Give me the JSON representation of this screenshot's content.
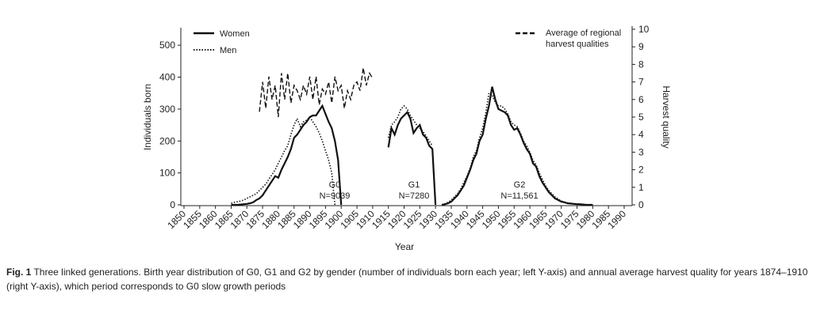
{
  "chart_data": {
    "type": "line",
    "x_label": "Year",
    "y_label": "Individuals born",
    "y2_label": "Harvest quality",
    "xlim": [
      1850,
      1990
    ],
    "xticks": [
      1850,
      1855,
      1860,
      1865,
      1870,
      1875,
      1880,
      1885,
      1890,
      1895,
      1900,
      1905,
      1910,
      1915,
      1920,
      1925,
      1930,
      1935,
      1940,
      1945,
      1950,
      1955,
      1960,
      1965,
      1970,
      1975,
      1980,
      1985,
      1990
    ],
    "ylim": [
      0,
      550
    ],
    "yticks": [
      0,
      100,
      200,
      300,
      400,
      500
    ],
    "y2lim": [
      0,
      10
    ],
    "y2ticks": [
      0,
      1,
      2,
      3,
      4,
      5,
      6,
      7,
      8,
      9,
      10
    ],
    "x": [
      1865,
      1866,
      1867,
      1868,
      1869,
      1870,
      1871,
      1872,
      1873,
      1874,
      1875,
      1876,
      1877,
      1878,
      1879,
      1880,
      1881,
      1882,
      1883,
      1884,
      1885,
      1886,
      1887,
      1888,
      1889,
      1890,
      1891,
      1892,
      1893,
      1894,
      1895,
      1896,
      1897,
      1898,
      1899,
      1900,
      1901,
      1902,
      1903,
      1904,
      1905,
      1906,
      1907,
      1908,
      1909,
      1910,
      1911,
      1912,
      1913,
      1914,
      1915,
      1916,
      1917,
      1918,
      1919,
      1920,
      1921,
      1922,
      1923,
      1924,
      1925,
      1926,
      1927,
      1928,
      1929,
      1930,
      1931,
      1932,
      1933,
      1934,
      1935,
      1936,
      1937,
      1938,
      1939,
      1940,
      1941,
      1942,
      1943,
      1944,
      1945,
      1946,
      1947,
      1948,
      1949,
      1950,
      1951,
      1952,
      1953,
      1954,
      1955,
      1956,
      1957,
      1958,
      1959,
      1960,
      1961,
      1962,
      1963,
      1964,
      1965,
      1966,
      1967,
      1968,
      1969,
      1970,
      1971,
      1972,
      1973,
      1974,
      1975,
      1976,
      1977,
      1978,
      1979,
      1980
    ],
    "series": [
      {
        "name": "Women",
        "color": "#111111",
        "style": "solid",
        "values": [
          0,
          0,
          0,
          1,
          2,
          3,
          5,
          8,
          15,
          20,
          30,
          45,
          60,
          75,
          90,
          85,
          110,
          130,
          150,
          175,
          210,
          220,
          235,
          250,
          260,
          275,
          280,
          280,
          295,
          310,
          285,
          260,
          240,
          200,
          140,
          0,
          null,
          null,
          null,
          null,
          null,
          null,
          null,
          null,
          null,
          null,
          null,
          null,
          null,
          null,
          180,
          240,
          220,
          250,
          270,
          280,
          290,
          270,
          225,
          240,
          250,
          220,
          210,
          185,
          175,
          0,
          null,
          0,
          2,
          5,
          10,
          20,
          30,
          45,
          60,
          85,
          110,
          140,
          160,
          200,
          220,
          270,
          310,
          370,
          330,
          300,
          295,
          290,
          280,
          250,
          235,
          240,
          220,
          195,
          175,
          160,
          130,
          120,
          90,
          70,
          55,
          40,
          30,
          20,
          15,
          10,
          8,
          5,
          4,
          3,
          2,
          2,
          1,
          0,
          0,
          0
        ]
      },
      {
        "name": "Men",
        "color": "#111111",
        "style": "dotted",
        "values": [
          5,
          8,
          10,
          12,
          15,
          20,
          25,
          30,
          35,
          45,
          55,
          65,
          80,
          95,
          110,
          130,
          150,
          170,
          185,
          220,
          250,
          270,
          245,
          260,
          265,
          275,
          260,
          245,
          225,
          200,
          170,
          140,
          100,
          0,
          null,
          null,
          null,
          null,
          null,
          null,
          null,
          null,
          null,
          null,
          null,
          null,
          null,
          null,
          null,
          null,
          210,
          250,
          260,
          275,
          300,
          310,
          300,
          280,
          265,
          250,
          240,
          230,
          215,
          200,
          185,
          null,
          null,
          0,
          3,
          8,
          15,
          25,
          35,
          50,
          70,
          90,
          115,
          150,
          170,
          210,
          240,
          290,
          350,
          345,
          320,
          310,
          310,
          300,
          285,
          260,
          250,
          245,
          225,
          200,
          185,
          165,
          140,
          125,
          100,
          80,
          60,
          45,
          35,
          25,
          18,
          12,
          9,
          6,
          5,
          4,
          3,
          2,
          1,
          0,
          0,
          0
        ]
      },
      {
        "name": "Average of regional harvest qualities",
        "color": "#111111",
        "style": "dashed",
        "axis": "y2",
        "x": [
          1874,
          1875,
          1876,
          1877,
          1878,
          1879,
          1880,
          1881,
          1882,
          1883,
          1884,
          1885,
          1886,
          1887,
          1888,
          1889,
          1890,
          1891,
          1892,
          1893,
          1894,
          1895,
          1896,
          1897,
          1898,
          1899,
          1900,
          1901,
          1902,
          1903,
          1904,
          1905,
          1906,
          1907,
          1908,
          1909,
          1910
        ],
        "values": [
          5.3,
          7,
          5.5,
          7.3,
          6,
          6.8,
          5,
          7.5,
          6,
          7.5,
          5.8,
          6.8,
          6.5,
          6,
          6.8,
          6.3,
          7.3,
          6,
          7.3,
          5.7,
          6.6,
          6.3,
          7,
          5.8,
          7.3,
          6.5,
          6.8,
          5.5,
          6.5,
          6,
          6.8,
          7,
          6.5,
          7.8,
          6.8,
          7.5,
          7.2
        ]
      }
    ],
    "annotations": [
      {
        "label": "G0",
        "n": "N=9039"
      },
      {
        "label": "G1",
        "n": "N=7280"
      },
      {
        "label": "G2",
        "n": "N=11,561"
      }
    ]
  },
  "caption": {
    "label": "Fig. 1",
    "text": "Three linked generations. Birth year distribution of G0, G1 and G2 by gender (number of individuals born each year; left Y-axis) and annual average harvest quality for years 1874–1910 (right Y-axis), which period corresponds to G0 slow growth periods"
  }
}
